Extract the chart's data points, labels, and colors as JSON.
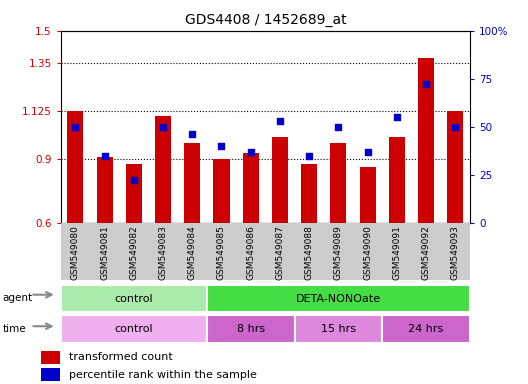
{
  "title": "GDS4408 / 1452689_at",
  "samples": [
    "GSM549080",
    "GSM549081",
    "GSM549082",
    "GSM549083",
    "GSM549084",
    "GSM549085",
    "GSM549086",
    "GSM549087",
    "GSM549088",
    "GSM549089",
    "GSM549090",
    "GSM549091",
    "GSM549092",
    "GSM549093"
  ],
  "bar_values": [
    1.125,
    0.91,
    0.875,
    1.1,
    0.975,
    0.9,
    0.925,
    1.0,
    0.875,
    0.975,
    0.86,
    1.0,
    1.37,
    1.125
  ],
  "percentile_values": [
    50,
    35,
    22,
    50,
    46,
    40,
    37,
    53,
    35,
    50,
    37,
    55,
    72,
    50
  ],
  "ylim_left": [
    0.6,
    1.5
  ],
  "ylim_right": [
    0,
    100
  ],
  "yticks_left": [
    0.6,
    0.9,
    1.125,
    1.35,
    1.5
  ],
  "yticks_right": [
    0,
    25,
    50,
    75,
    100
  ],
  "ytick_labels_left": [
    "0.6",
    "0.9",
    "1.125",
    "1.35",
    "1.5"
  ],
  "ytick_labels_right": [
    "0",
    "25",
    "50",
    "75",
    "100%"
  ],
  "bar_color": "#cc0000",
  "dot_color": "#0000cc",
  "agent_groups": [
    {
      "label": "control",
      "start": 0,
      "end": 5,
      "color": "#aaeaaa"
    },
    {
      "label": "DETA-NONOate",
      "start": 5,
      "end": 14,
      "color": "#44dd44"
    }
  ],
  "time_groups": [
    {
      "label": "control",
      "start": 0,
      "end": 5,
      "color": "#f0b0f0"
    },
    {
      "label": "8 hrs",
      "start": 5,
      "end": 8,
      "color": "#cc66cc"
    },
    {
      "label": "15 hrs",
      "start": 8,
      "end": 11,
      "color": "#dd88dd"
    },
    {
      "label": "24 hrs",
      "start": 11,
      "end": 14,
      "color": "#cc66cc"
    }
  ],
  "legend_items": [
    {
      "label": "transformed count",
      "color": "#cc0000"
    },
    {
      "label": "percentile rank within the sample",
      "color": "#0000cc"
    }
  ],
  "grid_yticks": [
    0.9,
    1.125,
    1.35
  ],
  "tick_label_color_left": "#cc0000",
  "tick_label_color_right": "#0000cc",
  "xtick_bg_color": "#cccccc",
  "arrow_color": "#888888"
}
